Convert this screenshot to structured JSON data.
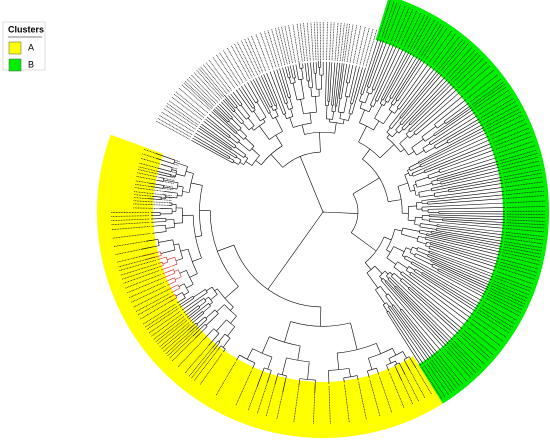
{
  "legend": {
    "title": "Clusters",
    "items": [
      {
        "label": "A",
        "color": "#ffff00"
      },
      {
        "label": "B",
        "color": "#00ee00"
      }
    ]
  }
}
